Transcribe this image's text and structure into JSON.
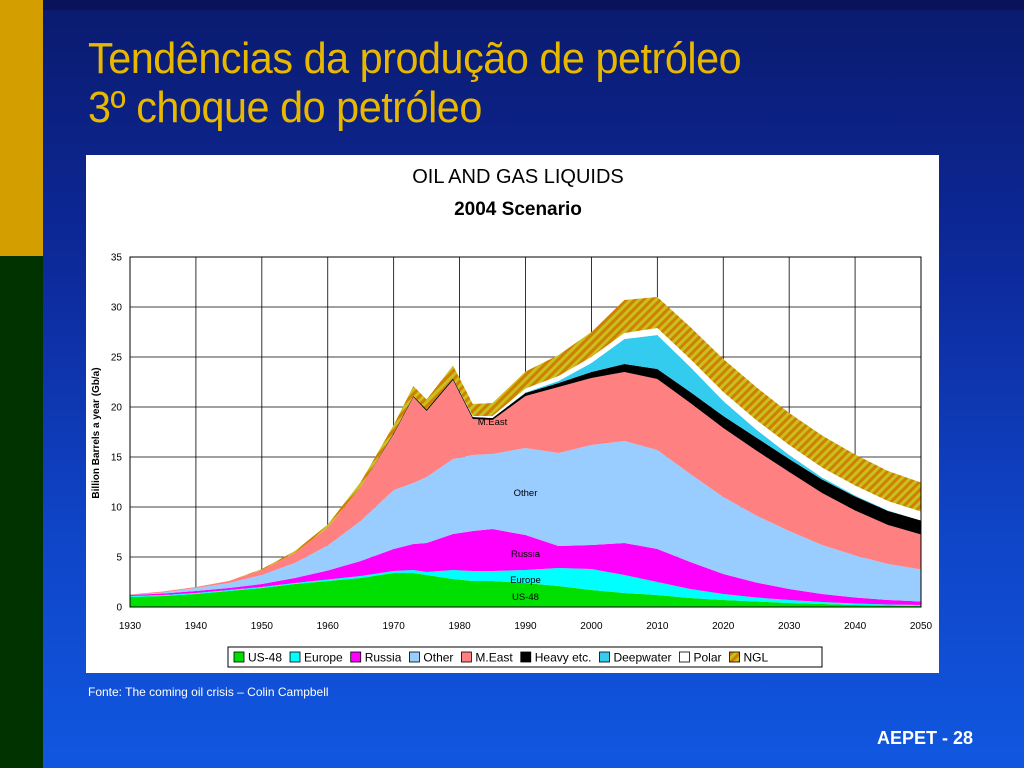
{
  "slide": {
    "title_line1": "Tendências da produção de petróleo",
    "title_line2": "3º choque do petróleo",
    "source": "Fonte: The coming oil crisis – Colin Campbell",
    "footer": "AEPET - 28"
  },
  "chart_data": {
    "type": "area",
    "stacked": true,
    "title": "OIL AND GAS LIQUIDS",
    "subtitle": "2004 Scenario",
    "ylabel": "Billion Barrels a year (Gb/a)",
    "xlim": [
      1930,
      2050
    ],
    "ylim": [
      0,
      35
    ],
    "xticks": [
      1930,
      1940,
      1950,
      1960,
      1970,
      1980,
      1990,
      2000,
      2010,
      2020,
      2030,
      2040,
      2050
    ],
    "yticks": [
      0,
      5,
      10,
      15,
      20,
      25,
      30,
      35
    ],
    "grid": true,
    "legend": "bottom",
    "x": [
      1930,
      1935,
      1940,
      1945,
      1950,
      1955,
      1960,
      1965,
      1970,
      1973,
      1975,
      1979,
      1982,
      1985,
      1990,
      1995,
      2000,
      2005,
      2010,
      2015,
      2020,
      2025,
      2030,
      2035,
      2040,
      2045,
      2050
    ],
    "series": [
      {
        "name": "US-48",
        "color": "#00e000",
        "values": [
          1.0,
          1.1,
          1.3,
          1.6,
          1.9,
          2.3,
          2.6,
          2.9,
          3.4,
          3.4,
          3.2,
          2.8,
          2.6,
          2.6,
          2.4,
          2.1,
          1.7,
          1.4,
          1.2,
          0.9,
          0.7,
          0.55,
          0.4,
          0.3,
          0.2,
          0.15,
          0.1
        ]
      },
      {
        "name": "Europe",
        "color": "#00ffff",
        "values": [
          0.1,
          0.1,
          0.1,
          0.1,
          0.1,
          0.1,
          0.15,
          0.2,
          0.2,
          0.3,
          0.3,
          0.9,
          1.0,
          1.0,
          1.3,
          1.8,
          2.1,
          1.8,
          1.3,
          0.9,
          0.6,
          0.4,
          0.3,
          0.2,
          0.15,
          0.1,
          0.1
        ]
      },
      {
        "name": "Russia",
        "color": "#ff00ff",
        "values": [
          0.1,
          0.15,
          0.2,
          0.2,
          0.3,
          0.5,
          0.9,
          1.5,
          2.2,
          2.6,
          2.9,
          3.6,
          4.0,
          4.2,
          3.5,
          2.2,
          2.4,
          3.2,
          3.3,
          2.7,
          2.0,
          1.5,
          1.1,
          0.8,
          0.6,
          0.45,
          0.35
        ]
      },
      {
        "name": "Other",
        "color": "#99ccff",
        "values": [
          0.0,
          0.1,
          0.3,
          0.5,
          0.9,
          1.5,
          2.5,
          4.0,
          5.9,
          6.1,
          6.6,
          7.5,
          7.6,
          7.5,
          8.7,
          9.3,
          10.0,
          10.2,
          9.9,
          8.8,
          7.7,
          6.7,
          5.8,
          4.9,
          4.2,
          3.6,
          3.2
        ]
      },
      {
        "name": "M.East",
        "color": "#ff8080",
        "values": [
          0.05,
          0.1,
          0.1,
          0.2,
          0.5,
          1.0,
          1.8,
          3.4,
          5.6,
          8.6,
          6.6,
          7.9,
          3.6,
          3.4,
          5.2,
          6.6,
          6.7,
          6.9,
          7.1,
          7.1,
          6.9,
          6.5,
          5.9,
          5.2,
          4.5,
          3.9,
          3.5
        ]
      },
      {
        "name": "Heavy etc.",
        "color": "#000000",
        "values": [
          0.0,
          0.0,
          0.0,
          0.0,
          0.0,
          0.0,
          0.0,
          0.0,
          0.1,
          0.1,
          0.15,
          0.15,
          0.2,
          0.2,
          0.3,
          0.4,
          0.6,
          0.8,
          1.0,
          1.1,
          1.2,
          1.3,
          1.3,
          1.35,
          1.4,
          1.4,
          1.4
        ]
      },
      {
        "name": "Deepwater",
        "color": "#33ccee",
        "values": [
          0.0,
          0.0,
          0.0,
          0.0,
          0.0,
          0.0,
          0.0,
          0.0,
          0.0,
          0.0,
          0.0,
          0.0,
          0.0,
          0.0,
          0.05,
          0.2,
          0.9,
          2.5,
          3.4,
          2.5,
          1.5,
          0.8,
          0.4,
          0.2,
          0.1,
          0.05,
          0.0
        ]
      },
      {
        "name": "Polar",
        "color": "#ffffff",
        "values": [
          0.0,
          0.0,
          0.0,
          0.0,
          0.0,
          0.0,
          0.0,
          0.0,
          0.0,
          0.0,
          0.0,
          0.0,
          0.1,
          0.2,
          0.4,
          0.5,
          0.6,
          0.6,
          0.7,
          0.8,
          0.9,
          0.95,
          1.0,
          1.0,
          1.0,
          0.95,
          0.9
        ]
      },
      {
        "name": "NGL",
        "color": "#d08000",
        "pattern": "hatch",
        "values": [
          0.0,
          0.0,
          0.0,
          0.0,
          0.1,
          0.2,
          0.3,
          0.5,
          0.8,
          1.0,
          1.0,
          1.3,
          1.2,
          1.3,
          1.7,
          2.1,
          2.5,
          3.3,
          3.1,
          3.2,
          3.3,
          3.3,
          3.2,
          3.2,
          3.1,
          3.0,
          2.9
        ]
      }
    ],
    "annotations": [
      {
        "text": "M.East",
        "x": 1985,
        "y": 18.5
      },
      {
        "text": "Other",
        "x": 1990,
        "y": 11.4
      },
      {
        "text": "Russia",
        "x": 1990,
        "y": 5.3
      },
      {
        "text": "Europe",
        "x": 1990,
        "y": 2.7
      },
      {
        "text": "US-48",
        "x": 1990,
        "y": 1.0
      }
    ]
  }
}
